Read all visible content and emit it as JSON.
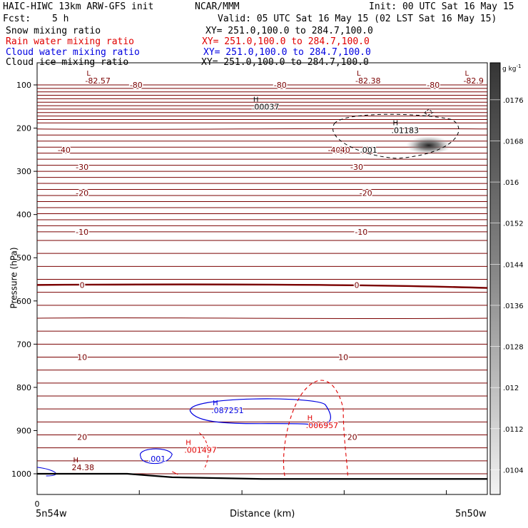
{
  "header": {
    "title": "HAIC-HIWC 13km ARW-GFS init",
    "org": "NCAR/MMM",
    "init": "Init: 00 UTC Sat 16 May 15",
    "fcst_label": "Fcst:",
    "fcst_value": "5 h",
    "valid": "Valid: 05 UTC Sat 16 May 15 (02 LST Sat 16 May 15)",
    "fields": [
      {
        "name": "Snow mixing ratio",
        "xy": "XY= 251.0,100.0 to 284.7,100.0",
        "color": "#000000"
      },
      {
        "name": "Rain water mixing ratio",
        "xy": "XY= 251.0,100.0 to 284.7,100.0",
        "color": "#e00000"
      },
      {
        "name": "Cloud water mixing ratio",
        "xy": "XY= 251.0,100.0 to 284.7,100.0",
        "color": "#0000e0"
      },
      {
        "name": "Cloud ice mixing ratio",
        "xy": "XY= 251.0,100.0 to 284.7,100.0",
        "color": "#000000"
      }
    ]
  },
  "chart_data": {
    "type": "contour",
    "xlabel": "Distance (km)",
    "ylabel": "Pressure (hPa)",
    "x_ticks": [
      {
        "label": "0",
        "at": 0
      }
    ],
    "x_end_labels": [
      "5n54w",
      "5n50w"
    ],
    "y_ticks": [
      100,
      200,
      300,
      400,
      500,
      600,
      700,
      800,
      900,
      1000
    ],
    "ylim": [
      1050,
      50
    ],
    "colorbar": {
      "unit": "g kg",
      "unit_exp": "-1",
      "labels": [
        ".0176",
        ".0168",
        ".016",
        ".0152",
        ".0144",
        ".0136",
        ".0128",
        ".012",
        ".0112",
        ".0104"
      ]
    },
    "temperature_contours": {
      "color": "#7a0000",
      "levels_labeled": [
        {
          "label": "-80",
          "pressure": 100,
          "positions": [
            0.22,
            0.54,
            0.88
          ]
        },
        {
          "label": "-40",
          "pressure": 250,
          "positions": [
            0.06,
            0.66
          ]
        },
        {
          "label": "-30",
          "pressure": 290,
          "positions": [
            0.1,
            0.71
          ]
        },
        {
          "label": "-20",
          "pressure": 350,
          "positions": [
            0.1,
            0.73
          ]
        },
        {
          "label": "-10",
          "pressure": 440,
          "positions": [
            0.1,
            0.72
          ]
        },
        {
          "label": "0",
          "pressure": 563,
          "positions": [
            0.1,
            0.71
          ]
        },
        {
          "label": "10",
          "pressure": 730,
          "positions": [
            0.1,
            0.68
          ]
        },
        {
          "label": "20",
          "pressure": 915,
          "positions": [
            0.1,
            0.7
          ]
        }
      ]
    },
    "annotations": [
      {
        "kind": "L",
        "value": "-82.57",
        "color": "#7a0000",
        "x": 0.11,
        "pressure": 95
      },
      {
        "kind": "L",
        "value": "-82.38",
        "color": "#7a0000",
        "x": 0.71,
        "pressure": 95
      },
      {
        "kind": "L",
        "value": "-82.9",
        "color": "#7a0000",
        "x": 0.95,
        "pressure": 95
      },
      {
        "kind": "H",
        "value": ".00037",
        "color": "#000000",
        "x": 0.48,
        "pressure": 155
      },
      {
        "kind": "H",
        "value": ".01183",
        "color": "#000000",
        "x": 0.79,
        "pressure": 210
      },
      {
        "kind": "",
        "value": "-40",
        "color": "#7a0000",
        "x": 0.67,
        "pressure": 255
      },
      {
        "kind": "",
        "value": ".001",
        "color": "#000000",
        "x": 0.72,
        "pressure": 255
      },
      {
        "kind": "H",
        "value": ".087251",
        "color": "#0000e0",
        "x": 0.39,
        "pressure": 858
      },
      {
        "kind": "H",
        "value": ".006957",
        "color": "#e00000",
        "x": 0.6,
        "pressure": 893
      },
      {
        "kind": "H",
        "value": ".001497",
        "color": "#e00000",
        "x": 0.33,
        "pressure": 950
      },
      {
        "kind": "",
        "value": ".001",
        "color": "#0000e0",
        "x": 0.25,
        "pressure": 970
      },
      {
        "kind": "H",
        "value": "24.38",
        "color": "#7a0000",
        "x": 0.08,
        "pressure": 990
      }
    ]
  }
}
